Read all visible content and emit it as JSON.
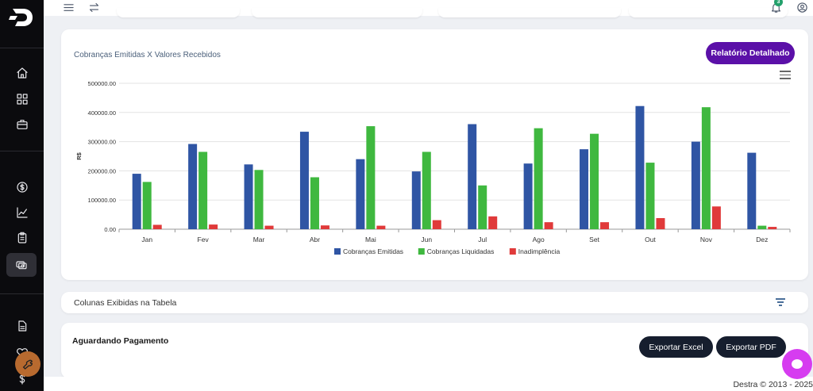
{
  "app": {
    "brand_colors": {
      "sidebar": "#0b0b0e",
      "accent": "#5b10a8",
      "dark_button": "#161e2e",
      "chat": "#d63cf0"
    }
  },
  "sidebar": {
    "items": [
      {
        "icon": "home-icon"
      },
      {
        "icon": "dashboard-icon"
      },
      {
        "icon": "briefcase-icon"
      },
      {
        "icon": "dollar-icon"
      },
      {
        "icon": "chart-line-icon"
      },
      {
        "icon": "clipboard-icon"
      },
      {
        "icon": "cards-icon",
        "active": true
      },
      {
        "icon": "document-icon"
      },
      {
        "icon": "heart-icon"
      },
      {
        "icon": "dollar-sign-icon"
      }
    ]
  },
  "topbar": {
    "notifications_count": "3"
  },
  "chart_section": {
    "title": "Cobranças Emitidas X Valores Recebidos",
    "report_button": "Relatório Detalhado"
  },
  "chart_data": {
    "type": "bar",
    "ylabel": "R$",
    "ylim": [
      0,
      500000
    ],
    "yticks": [
      "0.00",
      "100000.00",
      "200000.00",
      "300000.00",
      "400000.00",
      "500000.00"
    ],
    "categories": [
      "Jan",
      "Fev",
      "Mar",
      "Abr",
      "Mai",
      "Jun",
      "Jul",
      "Ago",
      "Set",
      "Out",
      "Nov",
      "Dez"
    ],
    "series": [
      {
        "name": "Cobranças Emitidas",
        "color": "#2f55a4",
        "values": [
          190000,
          292000,
          222000,
          334000,
          240000,
          198000,
          360000,
          225000,
          274000,
          422000,
          300000,
          262000
        ]
      },
      {
        "name": "Cobranças Liquidadas",
        "color": "#3fb83f",
        "values": [
          162000,
          265000,
          203000,
          178000,
          353000,
          265000,
          150000,
          346000,
          327000,
          228000,
          418000,
          12000
        ]
      },
      {
        "name": "Inadimplência",
        "color": "#e03a3a",
        "values": [
          15000,
          16000,
          12000,
          13000,
          12000,
          31000,
          44000,
          24000,
          24000,
          38000,
          78000,
          8000
        ]
      }
    ],
    "grid": true,
    "legend": "bottom-center"
  },
  "columns_section": {
    "title": "Colunas Exibidas na Tabela"
  },
  "awaiting_section": {
    "title": "Aguardando Pagamento",
    "export_excel": "Exportar Excel",
    "export_pdf": "Exportar PDF"
  },
  "footer": {
    "text": "Destra © 2013 - 2025"
  }
}
